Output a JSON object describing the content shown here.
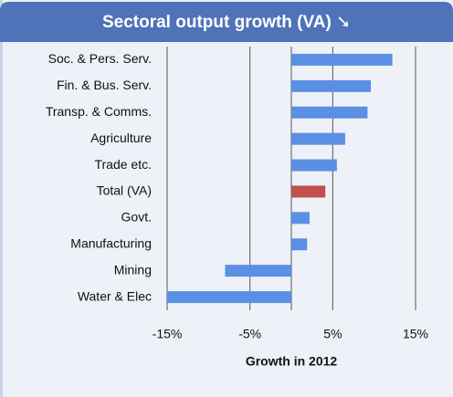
{
  "chart_data": {
    "type": "barh",
    "title": "Sectoral output growth (VA) ➘",
    "categories": [
      "Soc. & Pers. Serv.",
      "Fin. & Bus. Serv.",
      "Transp. & Comms.",
      "Agriculture",
      "Trade etc.",
      "Total (VA)",
      "Govt.",
      "Manufacturing",
      "Mining",
      "Water &  Elec"
    ],
    "values": [
      12.2,
      9.6,
      9.2,
      6.5,
      5.5,
      4.1,
      2.2,
      1.9,
      -8.0,
      -15.0
    ],
    "colors": [
      "#5b8fe3",
      "#5b8fe3",
      "#5b8fe3",
      "#5b8fe3",
      "#5b8fe3",
      "#c0504d",
      "#5b8fe3",
      "#5b8fe3",
      "#5b8fe3",
      "#5b8fe3"
    ],
    "xlabel": "Growth in 2012",
    "xlim": [
      -15,
      15
    ],
    "xticks": [
      {
        "value": -15,
        "label": "-15%"
      },
      {
        "value": -5,
        "label": "-5%"
      },
      {
        "value": 5,
        "label": "5%"
      },
      {
        "value": 15,
        "label": "15%"
      }
    ],
    "grid": true
  }
}
